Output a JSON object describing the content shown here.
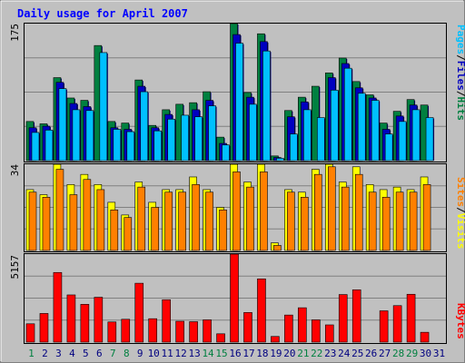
{
  "chart_data": {
    "type": "bar",
    "title": "Daily usage for April 2007",
    "categories": [
      "1",
      "2",
      "3",
      "4",
      "5",
      "6",
      "7",
      "8",
      "9",
      "10",
      "11",
      "12",
      "13",
      "14",
      "15",
      "16",
      "17",
      "18",
      "19",
      "20",
      "21",
      "22",
      "23",
      "24",
      "25",
      "26",
      "27",
      "28",
      "29",
      "30",
      "31"
    ],
    "weekend_days": [
      "1",
      "7",
      "8",
      "14",
      "15",
      "21",
      "22",
      "28",
      "29"
    ],
    "panels": [
      {
        "id": "hits",
        "ymax": 175,
        "ytick_label": "175",
        "ylabel_parts": [
          "Pages",
          "/",
          "Files",
          "/",
          "Hits"
        ],
        "series": [
          {
            "name": "Hits",
            "color": "#008040",
            "values": [
              50,
              47,
              106,
              80,
              77,
              147,
              50,
              48,
              103,
              45,
              65,
              72,
              74,
              88,
              30,
              180,
              87,
              162,
              6,
              64,
              81,
              95,
              112,
              131,
              101,
              84,
              48,
              63,
              78,
              71,
              0
            ]
          },
          {
            "name": "Files",
            "color": "#0000c0",
            "values": [
              42,
              44,
              100,
              73,
              69,
              0,
              42,
              40,
              95,
              42,
              59,
              0,
              65,
              77,
              22,
              161,
              81,
              152,
              4,
              56,
              75,
              0,
              106,
              124,
              93,
              80,
              40,
              57,
              71,
              0,
              0
            ]
          },
          {
            "name": "Pages",
            "color": "#00c0ff",
            "values": [
              36,
              39,
              92,
              65,
              64,
              138,
              40,
              37,
              88,
              38,
              53,
              58,
              56,
              70,
              20,
              150,
              72,
              140,
              3,
              34,
              65,
              55,
              90,
              118,
              86,
              77,
              34,
              50,
              65,
              55,
              0
            ]
          }
        ]
      },
      {
        "id": "visits",
        "ymax": 34,
        "ytick_label": "34",
        "ylabel_parts": [
          "Sites",
          "/",
          "Visits"
        ],
        "series": [
          {
            "name": "Visits",
            "color": "#ffff00",
            "values": [
              24,
              22,
              36,
              26,
              30,
              26,
              19,
              14,
              27,
              19,
              24,
              24,
              29,
              24,
              17,
              34,
              27,
              35,
              3,
              24,
              23,
              32,
              35,
              27,
              33,
              26,
              24,
              25,
              24,
              29,
              0
            ]
          },
          {
            "name": "Sites",
            "color": "#ff8000",
            "values": [
              23,
              21,
              32,
              22,
              28,
              24,
              16,
              13,
              25,
              17,
              23,
              23,
              26,
              23,
              16,
              31,
              25,
              31,
              2,
              23,
              21,
              30,
              33,
              25,
              30,
              23,
              21,
              23,
              23,
              26,
              0
            ]
          }
        ]
      },
      {
        "id": "kbytes",
        "ymax": 5157,
        "ytick_label": "5157",
        "ylabel_parts": [
          "KBytes"
        ],
        "series": [
          {
            "name": "KBytes",
            "color": "#ff0000",
            "values": [
              1074,
              1680,
              4080,
              2766,
              2215,
              2629,
              1182,
              1339,
              3450,
              1373,
              2485,
              1223,
              1197,
              1306,
              488,
              5157,
              1736,
              3706,
              333,
              1587,
              2014,
              1306,
              1010,
              2787,
              3065,
              0,
              1834,
              2139,
              2804,
              577,
              0
            ]
          }
        ]
      }
    ]
  }
}
